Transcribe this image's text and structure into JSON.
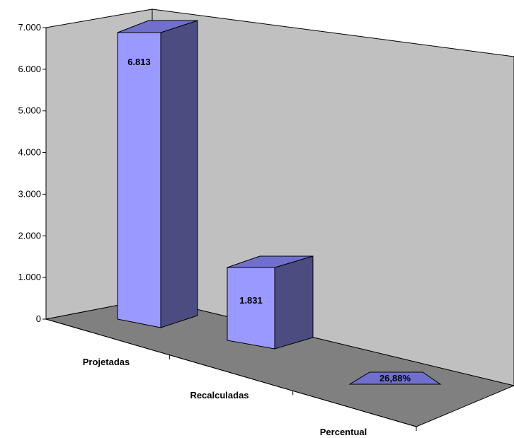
{
  "chart_data": {
    "type": "bar",
    "style": "3d-column",
    "title": "",
    "xlabel": "",
    "ylabel": "",
    "ylim": [
      0,
      7000
    ],
    "yticks": [
      "0",
      "1.000",
      "2.000",
      "3.000",
      "4.000",
      "5.000",
      "6.000",
      "7.000"
    ],
    "categories": [
      "Projetadas",
      "Recalculadas",
      "Percentual"
    ],
    "values": [
      6813,
      1831,
      0.2688
    ],
    "data_labels": [
      "6.813",
      "1.831",
      "26,88%"
    ],
    "grid": false,
    "legend": "none",
    "colors": {
      "bar_front": "#9999ff",
      "bar_top": "#7070cc",
      "bar_side": "#4c4c80",
      "back_wall": "#c0c0c0",
      "side_wall": "#c0c0c0",
      "floor": "#808080",
      "outline": "#000000"
    }
  }
}
